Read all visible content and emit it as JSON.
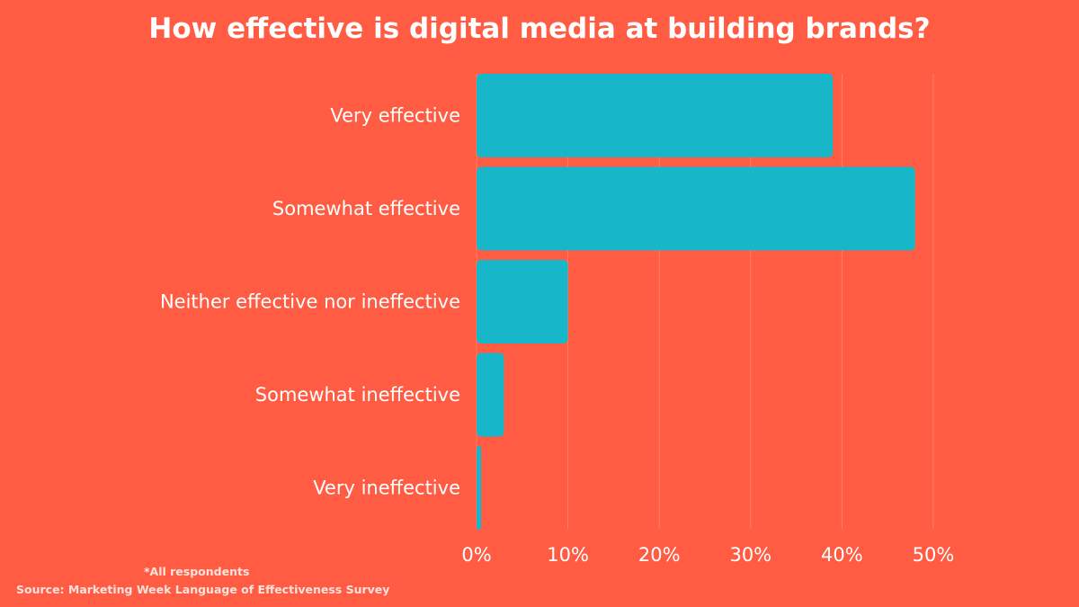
{
  "chart_data": {
    "type": "bar",
    "orientation": "horizontal",
    "title": "How effective is digital media at building brands?",
    "categories": [
      "Very effective",
      "Somewhat effective",
      "Neither effective nor ineffective",
      "Somewhat ineffective",
      "Very ineffective"
    ],
    "values": [
      39,
      48,
      10,
      3,
      0.5
    ],
    "unit": "%",
    "xlim": [
      0,
      50
    ],
    "xticks": [
      "0%",
      "10%",
      "20%",
      "30%",
      "40%",
      "50%"
    ],
    "xtick_values": [
      0,
      10,
      20,
      30,
      40,
      50
    ],
    "grid": true,
    "xlabel": "",
    "ylabel": "",
    "bar_color": "#18b6c9",
    "background_color": "#ff5c43"
  },
  "footnote": "*All respondents",
  "source": "Source: Marketing Week Language of Effectiveness Survey"
}
